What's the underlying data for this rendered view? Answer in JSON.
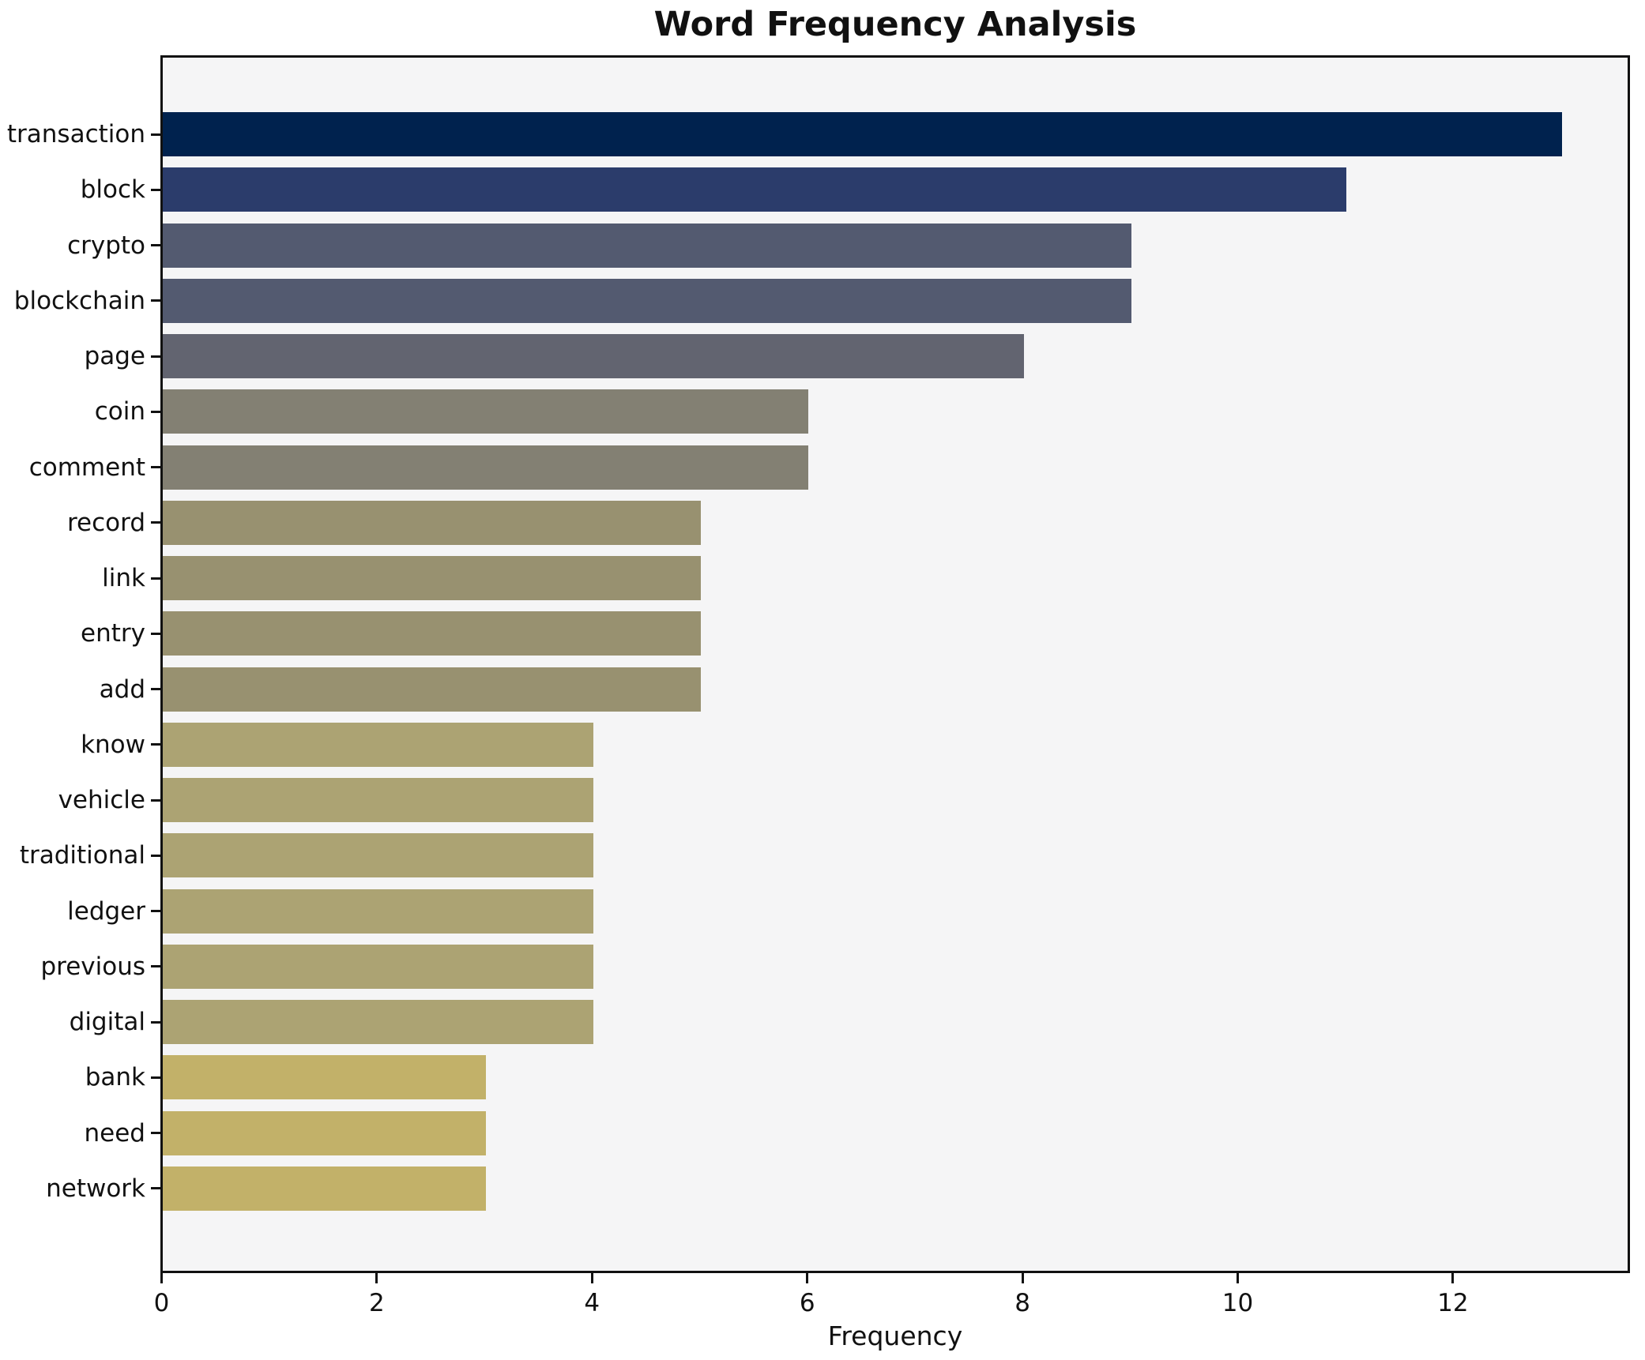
{
  "title": "Word Frequency Analysis",
  "xlabel": "Frequency",
  "colors": {
    "figure_bg": "#ffffff",
    "plot_bg": "#f5f5f6",
    "spine": "#111111",
    "text": "#111111"
  },
  "chart_data": {
    "type": "bar",
    "orientation": "horizontal",
    "title": "Word Frequency Analysis",
    "xlabel": "Frequency",
    "ylabel": "",
    "categories": [
      "transaction",
      "block",
      "crypto",
      "blockchain",
      "page",
      "coin",
      "comment",
      "record",
      "link",
      "entry",
      "add",
      "know",
      "vehicle",
      "traditional",
      "ledger",
      "previous",
      "digital",
      "bank",
      "need",
      "network"
    ],
    "values": [
      13,
      11,
      9,
      9,
      8,
      6,
      6,
      5,
      5,
      5,
      5,
      4,
      4,
      4,
      4,
      4,
      4,
      3,
      3,
      3
    ],
    "bar_colors": [
      "#00224e",
      "#2b3c6b",
      "#535a70",
      "#535a70",
      "#626470",
      "#838073",
      "#838073",
      "#989170",
      "#989170",
      "#989170",
      "#989170",
      "#aca373",
      "#aca373",
      "#aca373",
      "#aca373",
      "#aca373",
      "#aca373",
      "#c2b169",
      "#c2b169",
      "#c2b169"
    ],
    "xticks": [
      0,
      2,
      4,
      6,
      8,
      10,
      12
    ],
    "xlim": [
      0,
      13.65
    ],
    "ylim_categories_top_to_bottom": true,
    "grid": false,
    "legend": null
  }
}
